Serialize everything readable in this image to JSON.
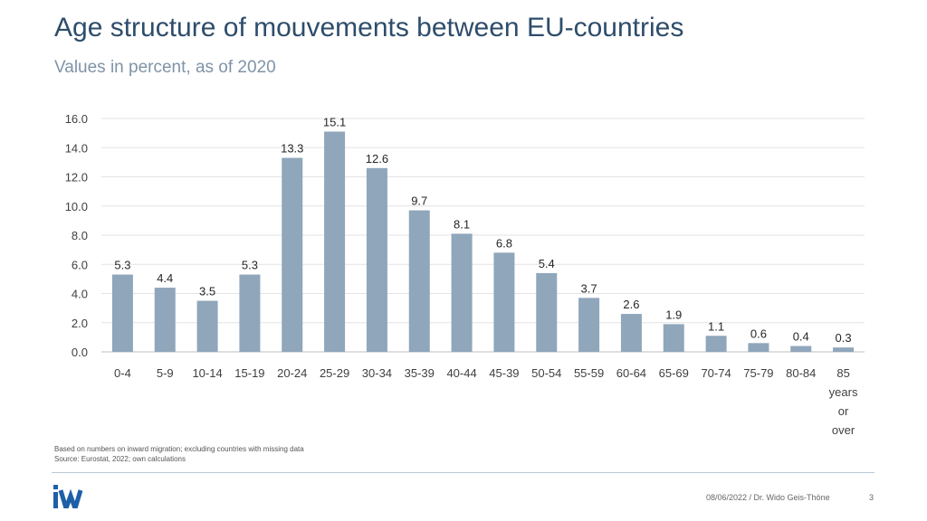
{
  "header": {
    "title": "Age structure of mouvements between EU-countries",
    "subtitle": "Values in percent, as of 2020"
  },
  "chart_data": {
    "type": "bar",
    "categories": [
      "0-4",
      "5-9",
      "10-14",
      "15-19",
      "20-24",
      "25-29",
      "30-34",
      "35-39",
      "40-44",
      "45-39",
      "50-54",
      "55-59",
      "60-64",
      "65-69",
      "70-74",
      "75-79",
      "80-84",
      "85 years or over"
    ],
    "values": [
      5.3,
      4.4,
      3.5,
      5.3,
      13.3,
      15.1,
      12.6,
      9.7,
      8.1,
      6.8,
      5.4,
      3.7,
      2.6,
      1.9,
      1.1,
      0.6,
      0.4,
      0.3
    ],
    "ylim": [
      0,
      16
    ],
    "yticks": [
      "0.0",
      "2.0",
      "4.0",
      "6.0",
      "8.0",
      "10.0",
      "12.0",
      "14.0",
      "16.0"
    ],
    "grid": true,
    "bar_color": "#8fa6bb"
  },
  "footer": {
    "note1": "Based on numbers on inward migration; excluding countries with missing data",
    "note2": "Source: Eurostat, 2022; own calculations",
    "date_author": "08/06/2022 / Dr. Wido Geis-Thöne",
    "page": "3",
    "logo": "iw-logo",
    "logo_color": "#1f5fa8"
  }
}
